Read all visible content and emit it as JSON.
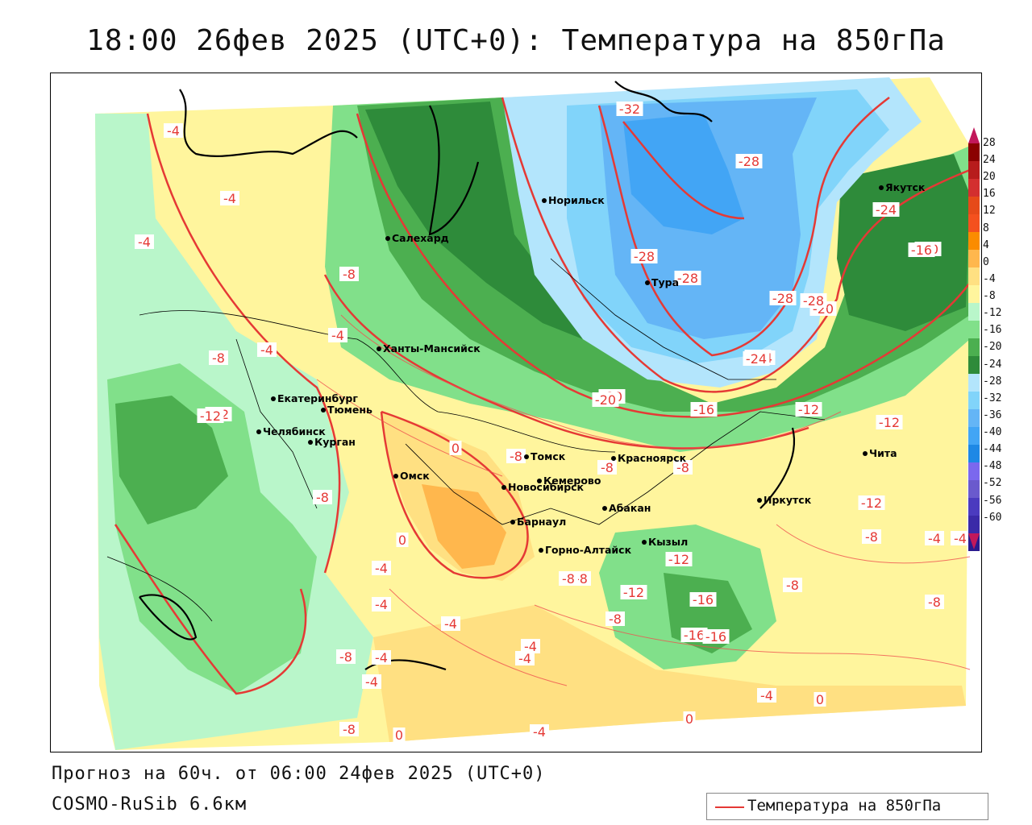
{
  "title": "18:00 26фев 2025 (UTC+0): Температура на 850гПа",
  "footer": {
    "forecast": "Прогноз на 60ч. от 06:00 24фев 2025 (UTC+0)",
    "model": "COSMO-RuSib 6.6км"
  },
  "legend": {
    "label": "Температура на 850гПа",
    "line_color": "#e53935"
  },
  "colorbar": {
    "labels": [
      "28",
      "24",
      "20",
      "16",
      "12",
      "8",
      "4",
      "0",
      "-4",
      "-8",
      "-12",
      "-16",
      "-20",
      "-24",
      "-28",
      "-32",
      "-36",
      "-40",
      "-44",
      "-48",
      "-52",
      "-56",
      "-60"
    ],
    "colors": [
      "#8b0000",
      "#b71c1c",
      "#d32f2f",
      "#e64a19",
      "#f4511e",
      "#fb8c00",
      "#ffb74d",
      "#ffe082",
      "#fff59d",
      "#b9f6ca",
      "#81e08a",
      "#4caf50",
      "#2e8b3a",
      "#b3e5fc",
      "#81d4fa",
      "#64b5f6",
      "#42a5f5",
      "#1e88e5",
      "#7b68ee",
      "#6a5acd",
      "#4b3bbf",
      "#3b2aa8",
      "#2a1a8f"
    ]
  },
  "cities": [
    {
      "name": "Салехард"
    },
    {
      "name": "Норильск"
    },
    {
      "name": "Тура"
    },
    {
      "name": "Якутск"
    },
    {
      "name": "Ханты-Мансийск"
    },
    {
      "name": "Екатеринбург"
    },
    {
      "name": "Тюмень"
    },
    {
      "name": "Челябинск"
    },
    {
      "name": "Курган"
    },
    {
      "name": "Омск"
    },
    {
      "name": "Новосибирск"
    },
    {
      "name": "Томск"
    },
    {
      "name": "Красноярск"
    },
    {
      "name": "Кемерово"
    },
    {
      "name": "Барнаул"
    },
    {
      "name": "Абакан"
    },
    {
      "name": "Горно-Алтайск"
    },
    {
      "name": "Кызыл"
    },
    {
      "name": "Иркутск"
    },
    {
      "name": "Чита"
    }
  ],
  "isolines": [
    "-4",
    "-4",
    "-4",
    "-8",
    "-4",
    "-12",
    "-8",
    "-8",
    "-4",
    "0",
    "0",
    "-4",
    "-4",
    "-8",
    "-12",
    "-16",
    "-20",
    "-24",
    "-28",
    "-28",
    "-28",
    "-32",
    "-20",
    "-24",
    "-28",
    "-28",
    "-24",
    "-20",
    "-16",
    "-12",
    "-12",
    "-8",
    "-8",
    "-12",
    "-8",
    "-4",
    "-4",
    "0",
    "0",
    "-4",
    "-8",
    "-8",
    "-16",
    "-12",
    "-12",
    "-8",
    "-4",
    "-4",
    "-4",
    "-8",
    "-16",
    "-20",
    "-24",
    "-4",
    "-8",
    "0",
    "-4",
    "-8",
    "-16",
    "-4",
    "-8"
  ]
}
